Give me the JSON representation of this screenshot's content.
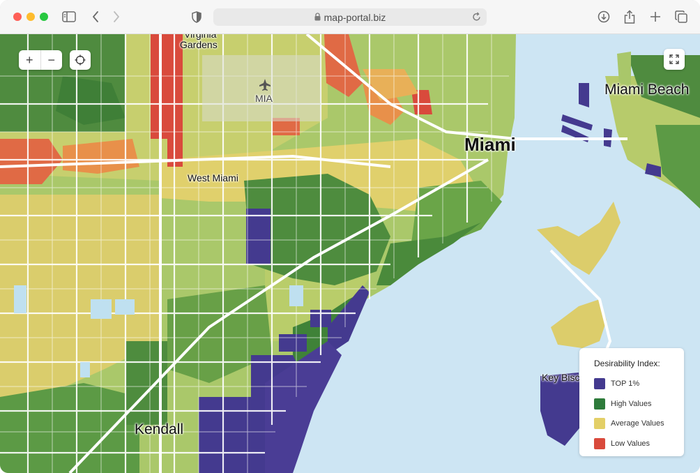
{
  "browser": {
    "url": "map-portal.biz",
    "icons": [
      "sidebar-icon",
      "back-icon",
      "forward-icon",
      "shield-icon",
      "lock-icon",
      "reload-icon",
      "download-icon",
      "share-icon",
      "new-tab-icon",
      "tabs-icon"
    ]
  },
  "map": {
    "controls": {
      "zoom_in": "+",
      "zoom_out": "−",
      "locate_icon": "crosshair-icon",
      "fullscreen_icon": "expand-icon"
    },
    "labels": {
      "virginia_gardens_top": "Virginia",
      "virginia_gardens": "Gardens",
      "mia": "MIA",
      "miami": "Miami",
      "miami_beach": "Miami Beach",
      "west_miami": "West Miami",
      "key_biscayne": "Key Bisc",
      "kendall": "Kendall"
    },
    "colors": {
      "water": "#cde5f3",
      "road": "#ffffff"
    }
  },
  "legend": {
    "title": "Desirability Index:",
    "items": [
      {
        "label": "TOP 1%",
        "color": "#443a8f"
      },
      {
        "label": "High Values",
        "color": "#2e7b3b"
      },
      {
        "label": "Average Values",
        "color": "#e3cf67"
      },
      {
        "label": "Low Values",
        "color": "#d94a3c"
      }
    ]
  }
}
